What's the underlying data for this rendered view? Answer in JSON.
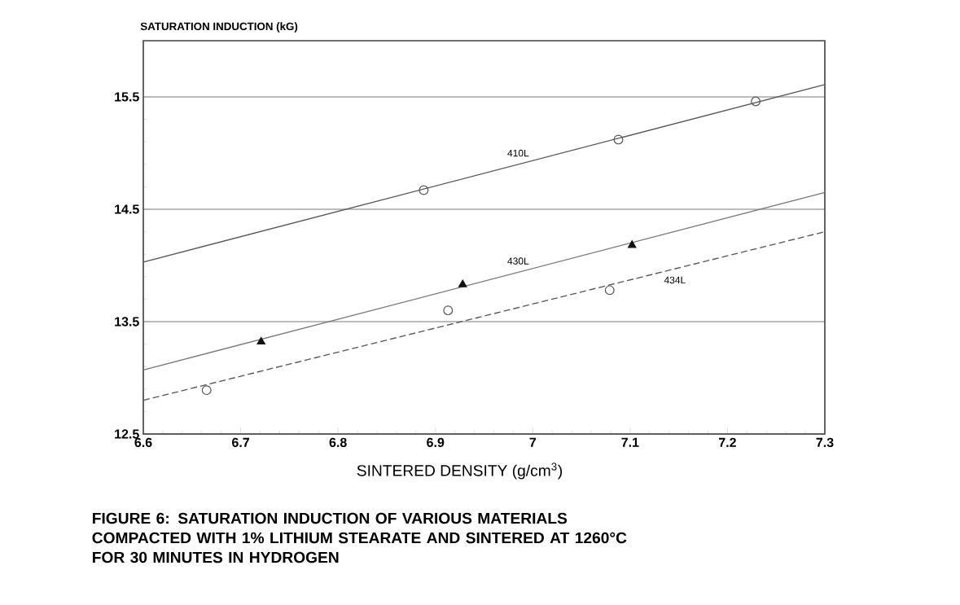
{
  "chart_data": {
    "type": "scatter",
    "ylabel": "SATURATION INDUCTION (kG)",
    "xlabel": "SINTERED DENSITY (g/cm$^{3}$)",
    "annotations": [
      "FIGURE 6:  SATURATION INDUCTION OF VARIOUS MATERIALS COMPACTED WITH 1% LITHIUM STEARATE AND SINTERED AT 1260°C FOR 30 MINUTES IN HYDROGEN"
    ],
    "xlim": [
      6.6,
      7.3
    ],
    "xticks": [
      6.6,
      6.7,
      6.8,
      6.9,
      7,
      7.1,
      7.2,
      7.3
    ],
    "ylim": [
      12.5,
      16
    ],
    "yticks": [
      12.5,
      13.5,
      14.5,
      15.5
    ],
    "grid": "y",
    "series": [
      {
        "marker": "circle",
        "color": "#555555",
        "x": [
          6.888,
          7.088,
          7.229
        ],
        "values": [
          14.67,
          15.12,
          15.46
        ]
      },
      {
        "type": "line",
        "name": "410L",
        "color": "#555555",
        "line_style": "solid",
        "x": [
          6.6,
          7.3
        ],
        "values": [
          14.03,
          15.61
        ]
      },
      {
        "marker": "triangle",
        "color": "#111111",
        "x": [
          6.721,
          6.928,
          7.102
        ],
        "values": [
          13.32,
          13.83,
          14.18
        ]
      },
      {
        "type": "line",
        "name": "430L",
        "color": "#777777",
        "line_style": "solid",
        "x": [
          6.6,
          7.3
        ],
        "values": [
          13.07,
          14.65
        ]
      },
      {
        "marker": "circle",
        "color": "#555555",
        "x": [
          6.665,
          6.913,
          7.079
        ],
        "values": [
          12.89,
          13.6,
          13.78
        ]
      },
      {
        "type": "line",
        "name": "434L",
        "color": "#555555",
        "line_style": "dashed",
        "x": [
          6.6,
          7.3
        ],
        "values": [
          12.8,
          14.3
        ]
      }
    ]
  }
}
